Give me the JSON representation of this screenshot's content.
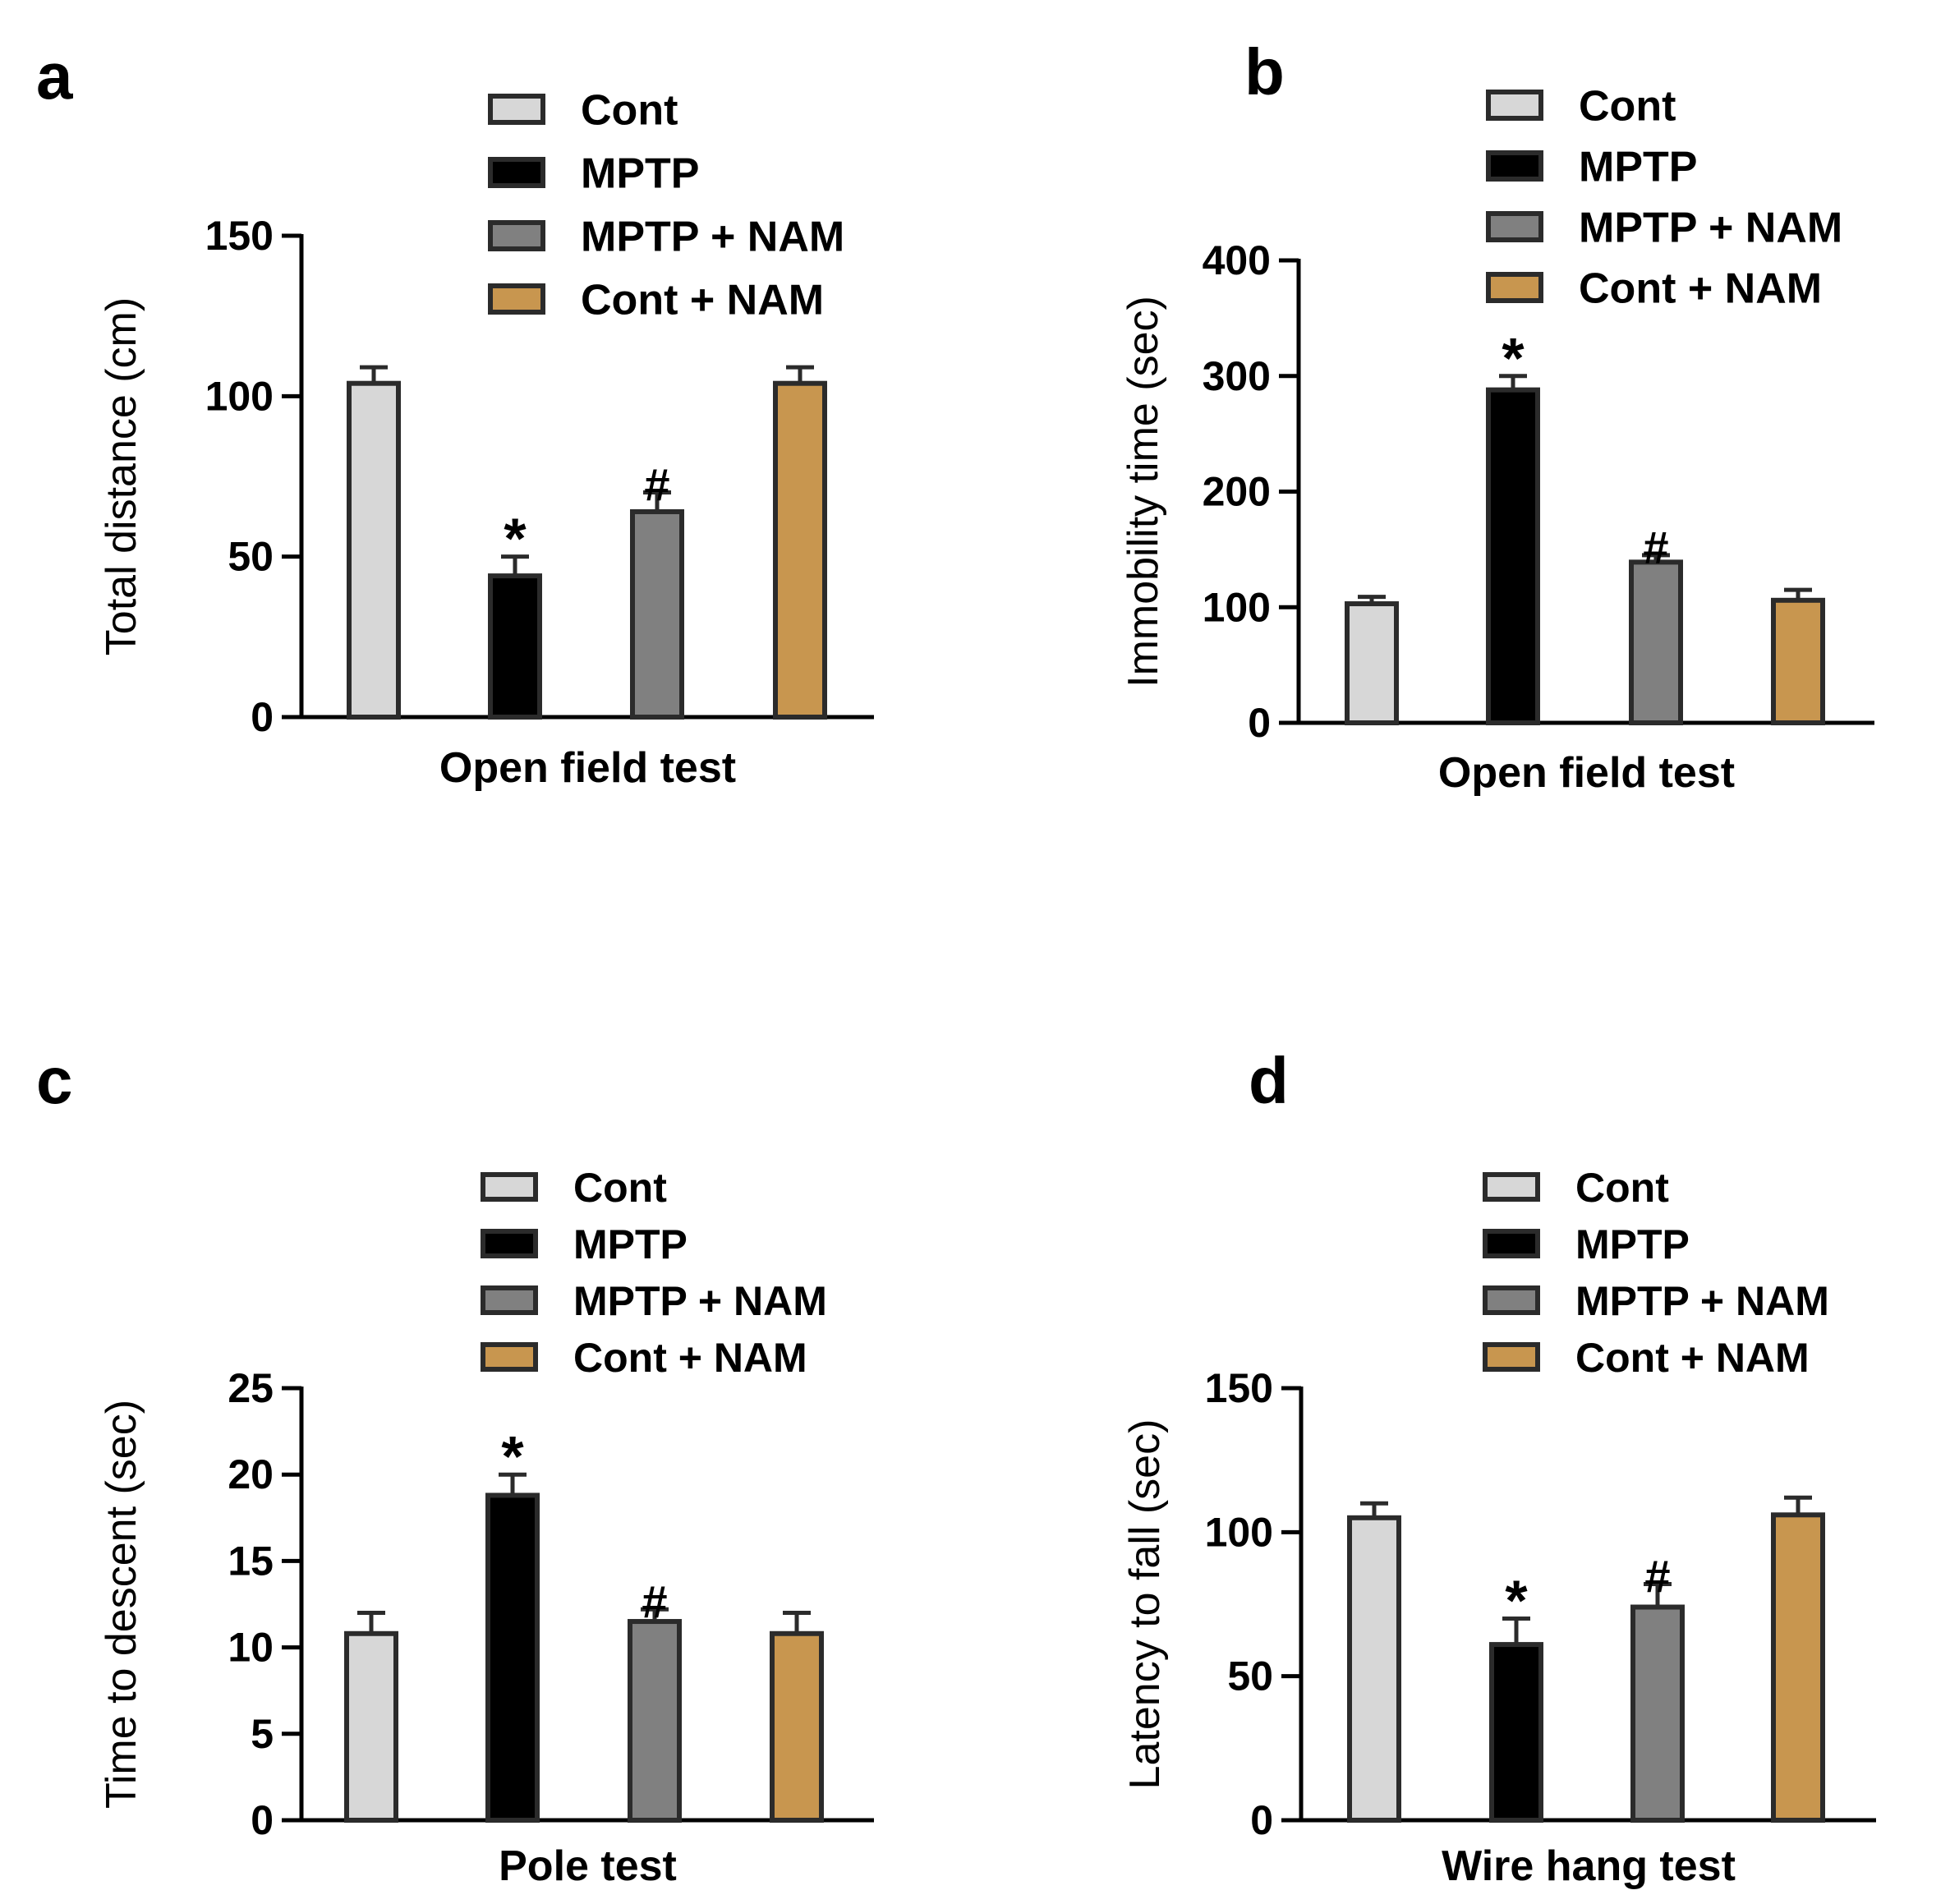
{
  "legend_entries": [
    "Cont",
    "MPTP",
    "MPTP + NAM",
    "Cont + NAM"
  ],
  "colors": {
    "Cont": "#d7d7d7",
    "MPTP": "#000000",
    "MPTP + NAM": "#808080",
    "Cont + NAM": "#c8964f",
    "stroke": "#2b2b2b"
  },
  "chart_data": [
    {
      "panel_label": "a",
      "type": "bar",
      "categories": [
        "Cont",
        "MPTP",
        "MPTP + NAM",
        "Cont + NAM"
      ],
      "values": [
        104,
        44,
        64,
        104
      ],
      "errors": [
        5,
        6,
        6,
        5
      ],
      "annotations": [
        "",
        "*",
        "#",
        ""
      ],
      "ylabel": "Total distance (cm)",
      "xlabel": "Open field test",
      "ylim": [
        0,
        150
      ],
      "yticks": [
        0,
        50,
        100,
        150
      ],
      "legend_position": "top"
    },
    {
      "panel_label": "b",
      "type": "bar",
      "categories": [
        "Cont",
        "MPTP",
        "MPTP + NAM",
        "Cont + NAM"
      ],
      "values": [
        103,
        288,
        139,
        106
      ],
      "errors": [
        6,
        12,
        6,
        9
      ],
      "annotations": [
        "",
        "*",
        "#",
        ""
      ],
      "ylabel": "Immobility time (sec)",
      "xlabel": "Open field test",
      "ylim": [
        0,
        400
      ],
      "yticks": [
        0,
        100,
        200,
        300,
        400
      ],
      "legend_position": "top-right"
    },
    {
      "panel_label": "c",
      "type": "bar",
      "categories": [
        "Cont",
        "MPTP",
        "MPTP + NAM",
        "Cont + NAM"
      ],
      "values": [
        10.8,
        18.8,
        11.5,
        10.8
      ],
      "errors": [
        1.2,
        1.2,
        0.7,
        1.2
      ],
      "annotations": [
        "",
        "*",
        "#",
        ""
      ],
      "ylabel": "Time to descent (sec)",
      "xlabel": "Pole  test",
      "ylim": [
        0,
        25
      ],
      "yticks": [
        0,
        5,
        10,
        15,
        20,
        25
      ],
      "legend_position": "top"
    },
    {
      "panel_label": "d",
      "type": "bar",
      "categories": [
        "Cont",
        "MPTP",
        "MPTP + NAM",
        "Cont + NAM"
      ],
      "values": [
        105,
        61,
        74,
        106
      ],
      "errors": [
        5,
        9,
        8,
        6
      ],
      "annotations": [
        "",
        "*",
        "#",
        ""
      ],
      "ylabel": "Latency to fall (sec)",
      "xlabel": "Wire hang test",
      "ylim": [
        0,
        150
      ],
      "yticks": [
        0,
        50,
        100,
        150
      ],
      "legend_position": "top-right"
    }
  ]
}
